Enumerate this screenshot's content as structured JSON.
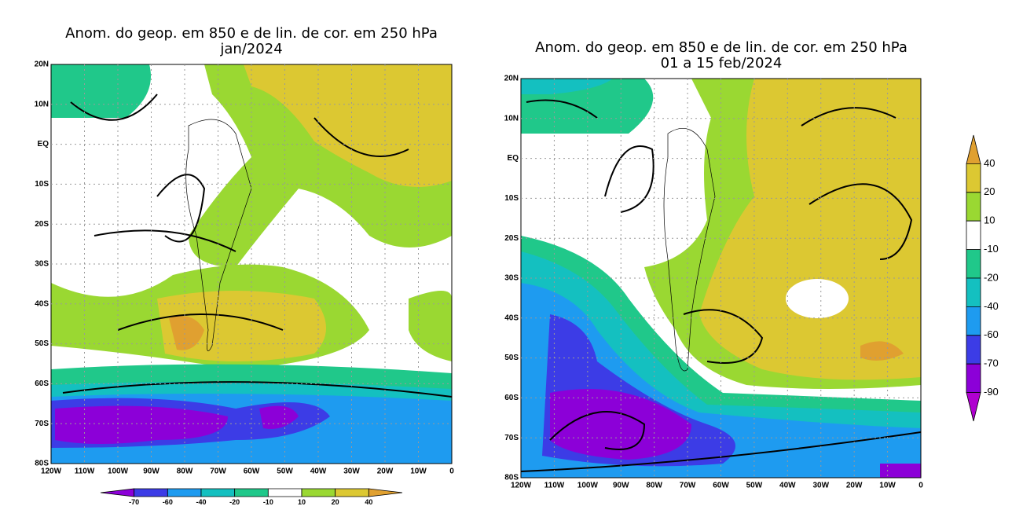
{
  "maps": [
    {
      "title_line1": "Anom. do geop. em 850 e de lin. de cor. em 250 hPa",
      "title_line2": "jan/2024",
      "lat_labels": [
        "20N",
        "10N",
        "EQ",
        "10S",
        "20S",
        "30S",
        "40S",
        "50S",
        "60S",
        "70S",
        "80S"
      ],
      "lon_labels": [
        "120W",
        "110W",
        "100W",
        "90W",
        "80W",
        "70W",
        "60W",
        "50W",
        "40W",
        "30W",
        "20W",
        "10W",
        "0"
      ],
      "colorbar": {
        "labels": [
          "-70",
          "-60",
          "-40",
          "-20",
          "-10",
          "10",
          "20",
          "40"
        ],
        "colors": [
          "#8c00d8",
          "#3c3ce6",
          "#1e9bf0",
          "#14c0c0",
          "#20c88a",
          "#ffffff",
          "#9ad832",
          "#dcc832",
          "#e0a030"
        ]
      }
    },
    {
      "title_line1": "Anom. do geop. em 850 e de lin. de cor. em 250 hPa",
      "title_line2": "01 a 15 feb/2024",
      "lat_labels": [
        "20N",
        "10N",
        "EQ",
        "10S",
        "20S",
        "30S",
        "40S",
        "50S",
        "60S",
        "70S",
        "80S"
      ],
      "lon_labels": [
        "120W",
        "110W",
        "100W",
        "90W",
        "80W",
        "70W",
        "60W",
        "50W",
        "40W",
        "30W",
        "20W",
        "10W",
        "0"
      ],
      "colorbar": {
        "labels": [
          "40",
          "20",
          "10",
          "-10",
          "-20",
          "-40",
          "-60",
          "-70",
          "-90"
        ],
        "colors": [
          "#e0a030",
          "#dcc832",
          "#9ad832",
          "#ffffff",
          "#20c88a",
          "#14c0c0",
          "#1e9bf0",
          "#3c3ce6",
          "#8c00d8",
          "#b000d0"
        ]
      }
    }
  ]
}
